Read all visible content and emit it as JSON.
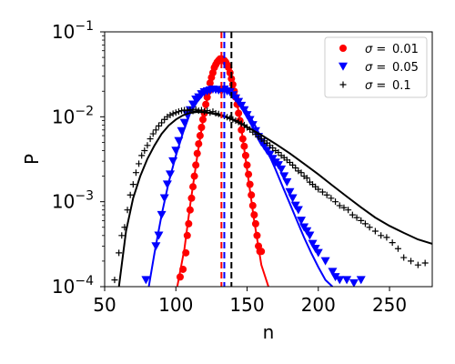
{
  "chart_data": {
    "type": "scatter",
    "title": "",
    "xlabel": "n",
    "ylabel": "P",
    "xlim": [
      50,
      280
    ],
    "ylim": [
      0.0001,
      0.1
    ],
    "yscale": "log",
    "grid": false,
    "legend_placement": "top-right",
    "x_ticks": [
      {
        "value": 50,
        "label": "50"
      },
      {
        "value": 100,
        "label": "100"
      },
      {
        "value": 150,
        "label": "150"
      },
      {
        "value": 200,
        "label": "200"
      },
      {
        "value": 250,
        "label": "250"
      }
    ],
    "y_ticks": [
      {
        "value": 0.0001,
        "base": "10",
        "exp": "−4"
      },
      {
        "value": 0.001,
        "base": "10",
        "exp": "−3"
      },
      {
        "value": 0.01,
        "base": "10",
        "exp": "−2"
      },
      {
        "value": 0.1,
        "base": "10",
        "exp": "−1"
      }
    ],
    "series": [
      {
        "name": "σ = 0.01",
        "legend_symbol": "σ =",
        "legend_value": "0.01",
        "color": "#ff0000",
        "marker": "circle",
        "mean_line": 132,
        "points": [
          [
            103,
            0.00013
          ],
          [
            105,
            0.00016
          ],
          [
            107,
            0.00025
          ],
          [
            108,
            0.0004
          ],
          [
            109,
            0.00055
          ],
          [
            110,
            0.0008
          ],
          [
            111,
            0.0011
          ],
          [
            112,
            0.0015
          ],
          [
            113,
            0.002
          ],
          [
            114,
            0.0027
          ],
          [
            115,
            0.0037
          ],
          [
            116,
            0.0048
          ],
          [
            117,
            0.006
          ],
          [
            118,
            0.0075
          ],
          [
            119,
            0.0093
          ],
          [
            120,
            0.011
          ],
          [
            121,
            0.014
          ],
          [
            122,
            0.017
          ],
          [
            123,
            0.02
          ],
          [
            124,
            0.025
          ],
          [
            125,
            0.029
          ],
          [
            126,
            0.033
          ],
          [
            127,
            0.038
          ],
          [
            128,
            0.041
          ],
          [
            129,
            0.044
          ],
          [
            130,
            0.046
          ],
          [
            131,
            0.048
          ],
          [
            132,
            0.048
          ],
          [
            133,
            0.047
          ],
          [
            134,
            0.046
          ],
          [
            135,
            0.044
          ],
          [
            136,
            0.041
          ],
          [
            137,
            0.038
          ],
          [
            138,
            0.033
          ],
          [
            139,
            0.028
          ],
          [
            140,
            0.024
          ],
          [
            141,
            0.02
          ],
          [
            142,
            0.017
          ],
          [
            143,
            0.014
          ],
          [
            144,
            0.011
          ],
          [
            145,
            0.009
          ],
          [
            146,
            0.007
          ],
          [
            147,
            0.0055
          ],
          [
            148,
            0.0045
          ],
          [
            149,
            0.0035
          ],
          [
            150,
            0.0027
          ],
          [
            151,
            0.0021
          ],
          [
            152,
            0.0016
          ],
          [
            153,
            0.0012
          ],
          [
            154,
            0.0009
          ],
          [
            155,
            0.0007
          ],
          [
            156,
            0.00055
          ],
          [
            157,
            0.0004
          ],
          [
            158,
            0.0003
          ],
          [
            159,
            0.00026
          ],
          [
            160,
            0.00026
          ]
        ],
        "fit": [
          [
            101,
            0.0001
          ],
          [
            106,
            0.00028
          ],
          [
            110,
            0.0009
          ],
          [
            115,
            0.0034
          ],
          [
            120,
            0.0115
          ],
          [
            125,
            0.027
          ],
          [
            130,
            0.045
          ],
          [
            133,
            0.048
          ],
          [
            136,
            0.043
          ],
          [
            140,
            0.026
          ],
          [
            145,
            0.0095
          ],
          [
            150,
            0.0024
          ],
          [
            155,
            0.0006
          ],
          [
            160,
            0.00018
          ],
          [
            165,
            0.0001
          ]
        ]
      },
      {
        "name": "σ = 0.05",
        "legend_symbol": "σ =",
        "legend_value": "0.05",
        "color": "#0000ff",
        "marker": "triangle-down",
        "mean_line": 134,
        "points": [
          [
            79,
            0.00012
          ],
          [
            86,
            0.0003
          ],
          [
            88,
            0.0004
          ],
          [
            90,
            0.0007
          ],
          [
            92,
            0.0011
          ],
          [
            94,
            0.0016
          ],
          [
            96,
            0.0021
          ],
          [
            98,
            0.003
          ],
          [
            100,
            0.004
          ],
          [
            102,
            0.0052
          ],
          [
            104,
            0.0068
          ],
          [
            106,
            0.0085
          ],
          [
            108,
            0.0105
          ],
          [
            110,
            0.012
          ],
          [
            112,
            0.014
          ],
          [
            114,
            0.016
          ],
          [
            116,
            0.017
          ],
          [
            118,
            0.0185
          ],
          [
            120,
            0.0195
          ],
          [
            122,
            0.02
          ],
          [
            124,
            0.0205
          ],
          [
            126,
            0.021
          ],
          [
            128,
            0.0208
          ],
          [
            130,
            0.0205
          ],
          [
            132,
            0.02
          ],
          [
            134,
            0.021
          ],
          [
            136,
            0.02
          ],
          [
            138,
            0.0195
          ],
          [
            140,
            0.018
          ],
          [
            142,
            0.0165
          ],
          [
            144,
            0.015
          ],
          [
            146,
            0.0135
          ],
          [
            148,
            0.012
          ],
          [
            150,
            0.0105
          ],
          [
            152,
            0.0092
          ],
          [
            154,
            0.008
          ],
          [
            156,
            0.0068
          ],
          [
            158,
            0.0058
          ],
          [
            160,
            0.005
          ],
          [
            162,
            0.0045
          ],
          [
            164,
            0.004
          ],
          [
            166,
            0.0036
          ],
          [
            168,
            0.0032
          ],
          [
            170,
            0.0029
          ],
          [
            172,
            0.0027
          ],
          [
            174,
            0.0024
          ],
          [
            176,
            0.002
          ],
          [
            178,
            0.0017
          ],
          [
            180,
            0.0013
          ],
          [
            182,
            0.0011
          ],
          [
            184,
            0.0009
          ],
          [
            186,
            0.0008
          ],
          [
            188,
            0.0006
          ],
          [
            190,
            0.0005
          ],
          [
            192,
            0.00045
          ],
          [
            194,
            0.0004
          ],
          [
            196,
            0.00032
          ],
          [
            198,
            0.00028
          ],
          [
            200,
            0.00025
          ],
          [
            205,
            0.0002
          ],
          [
            210,
            0.00015
          ],
          [
            212,
            0.00013
          ],
          [
            215,
            0.00012
          ],
          [
            220,
            0.00012
          ],
          [
            225,
            0.00011
          ],
          [
            230,
            0.00012
          ]
        ],
        "fit": [
          [
            81,
            0.0001
          ],
          [
            85,
            0.00025
          ],
          [
            90,
            0.0007
          ],
          [
            95,
            0.0017
          ],
          [
            100,
            0.0035
          ],
          [
            105,
            0.0065
          ],
          [
            110,
            0.011
          ],
          [
            115,
            0.015
          ],
          [
            120,
            0.019
          ],
          [
            125,
            0.0205
          ],
          [
            130,
            0.021
          ],
          [
            135,
            0.0205
          ],
          [
            140,
            0.018
          ],
          [
            145,
            0.015
          ],
          [
            150,
            0.0115
          ],
          [
            155,
            0.0083
          ],
          [
            160,
            0.0056
          ],
          [
            165,
            0.0037
          ],
          [
            170,
            0.0024
          ],
          [
            175,
            0.0015
          ],
          [
            180,
            0.00095
          ],
          [
            185,
            0.0006
          ],
          [
            190,
            0.00038
          ],
          [
            195,
            0.00025
          ],
          [
            200,
            0.00017
          ],
          [
            205,
            0.00012
          ],
          [
            210,
            0.0001
          ]
        ]
      },
      {
        "name": "σ = 0.1",
        "legend_symbol": "σ =",
        "legend_value": "0.1",
        "color": "#000000",
        "marker": "plus",
        "mean_line": 139,
        "points": [
          [
            57,
            0.00012
          ],
          [
            60,
            0.00025
          ],
          [
            62,
            0.0004
          ],
          [
            64,
            0.0005
          ],
          [
            66,
            0.0008
          ],
          [
            68,
            0.0012
          ],
          [
            70,
            0.0016
          ],
          [
            72,
            0.0022
          ],
          [
            74,
            0.0028
          ],
          [
            76,
            0.0035
          ],
          [
            78,
            0.004
          ],
          [
            80,
            0.0046
          ],
          [
            82,
            0.0055
          ],
          [
            84,
            0.0063
          ],
          [
            86,
            0.007
          ],
          [
            88,
            0.0078
          ],
          [
            90,
            0.0085
          ],
          [
            92,
            0.0093
          ],
          [
            94,
            0.01
          ],
          [
            96,
            0.0105
          ],
          [
            98,
            0.0109
          ],
          [
            100,
            0.0112
          ],
          [
            102,
            0.0115
          ],
          [
            104,
            0.0118
          ],
          [
            106,
            0.012
          ],
          [
            108,
            0.0118
          ],
          [
            110,
            0.0121
          ],
          [
            112,
            0.0117
          ],
          [
            114,
            0.0122
          ],
          [
            116,
            0.0118
          ],
          [
            118,
            0.012
          ],
          [
            120,
            0.0115
          ],
          [
            122,
            0.0118
          ],
          [
            124,
            0.0112
          ],
          [
            126,
            0.0115
          ],
          [
            128,
            0.011
          ],
          [
            130,
            0.0108
          ],
          [
            132,
            0.0105
          ],
          [
            134,
            0.0102
          ],
          [
            136,
            0.0099
          ],
          [
            138,
            0.0096
          ],
          [
            140,
            0.0093
          ],
          [
            142,
            0.009
          ],
          [
            144,
            0.0087
          ],
          [
            146,
            0.0083
          ],
          [
            148,
            0.008
          ],
          [
            150,
            0.0075
          ],
          [
            152,
            0.0071
          ],
          [
            154,
            0.0066
          ],
          [
            156,
            0.0062
          ],
          [
            158,
            0.0058
          ],
          [
            160,
            0.0055
          ],
          [
            162,
            0.0052
          ],
          [
            164,
            0.0049
          ],
          [
            166,
            0.0046
          ],
          [
            168,
            0.0043
          ],
          [
            170,
            0.004
          ],
          [
            172,
            0.0038
          ],
          [
            174,
            0.0035
          ],
          [
            176,
            0.0033
          ],
          [
            178,
            0.0031
          ],
          [
            180,
            0.0029
          ],
          [
            182,
            0.0027
          ],
          [
            184,
            0.0025
          ],
          [
            186,
            0.0023
          ],
          [
            188,
            0.0022
          ],
          [
            190,
            0.002
          ],
          [
            192,
            0.0019
          ],
          [
            194,
            0.0017
          ],
          [
            196,
            0.0016
          ],
          [
            198,
            0.0015
          ],
          [
            200,
            0.0014
          ],
          [
            203,
            0.0013
          ],
          [
            206,
            0.0012
          ],
          [
            209,
            0.0011
          ],
          [
            212,
            0.001
          ],
          [
            215,
            0.0009
          ],
          [
            218,
            0.00085
          ],
          [
            221,
            0.0008
          ],
          [
            224,
            0.0007
          ],
          [
            227,
            0.00065
          ],
          [
            230,
            0.0006
          ],
          [
            233,
            0.00055
          ],
          [
            236,
            0.0005
          ],
          [
            240,
            0.00045
          ],
          [
            244,
            0.0004
          ],
          [
            248,
            0.00038
          ],
          [
            252,
            0.00033
          ],
          [
            256,
            0.00028
          ],
          [
            260,
            0.00022
          ],
          [
            265,
            0.0002
          ],
          [
            270,
            0.00018
          ],
          [
            275,
            0.00019
          ]
        ],
        "fit": [
          [
            60,
            0.0001
          ],
          [
            65,
            0.00045
          ],
          [
            70,
            0.0011
          ],
          [
            75,
            0.002
          ],
          [
            80,
            0.0032
          ],
          [
            85,
            0.0046
          ],
          [
            90,
            0.0063
          ],
          [
            95,
            0.0079
          ],
          [
            100,
            0.0093
          ],
          [
            105,
            0.0104
          ],
          [
            110,
            0.0111
          ],
          [
            115,
            0.0114
          ],
          [
            120,
            0.0113
          ],
          [
            125,
            0.011
          ],
          [
            130,
            0.0105
          ],
          [
            135,
            0.0099
          ],
          [
            140,
            0.0092
          ],
          [
            150,
            0.0076
          ],
          [
            160,
            0.0061
          ],
          [
            170,
            0.0048
          ],
          [
            180,
            0.0037
          ],
          [
            190,
            0.0028
          ],
          [
            200,
            0.0021
          ],
          [
            210,
            0.00155
          ],
          [
            220,
            0.00115
          ],
          [
            230,
            0.00086
          ],
          [
            240,
            0.00065
          ],
          [
            250,
            0.00052
          ],
          [
            260,
            0.00043
          ],
          [
            270,
            0.00036
          ],
          [
            280,
            0.00032
          ]
        ]
      }
    ]
  }
}
